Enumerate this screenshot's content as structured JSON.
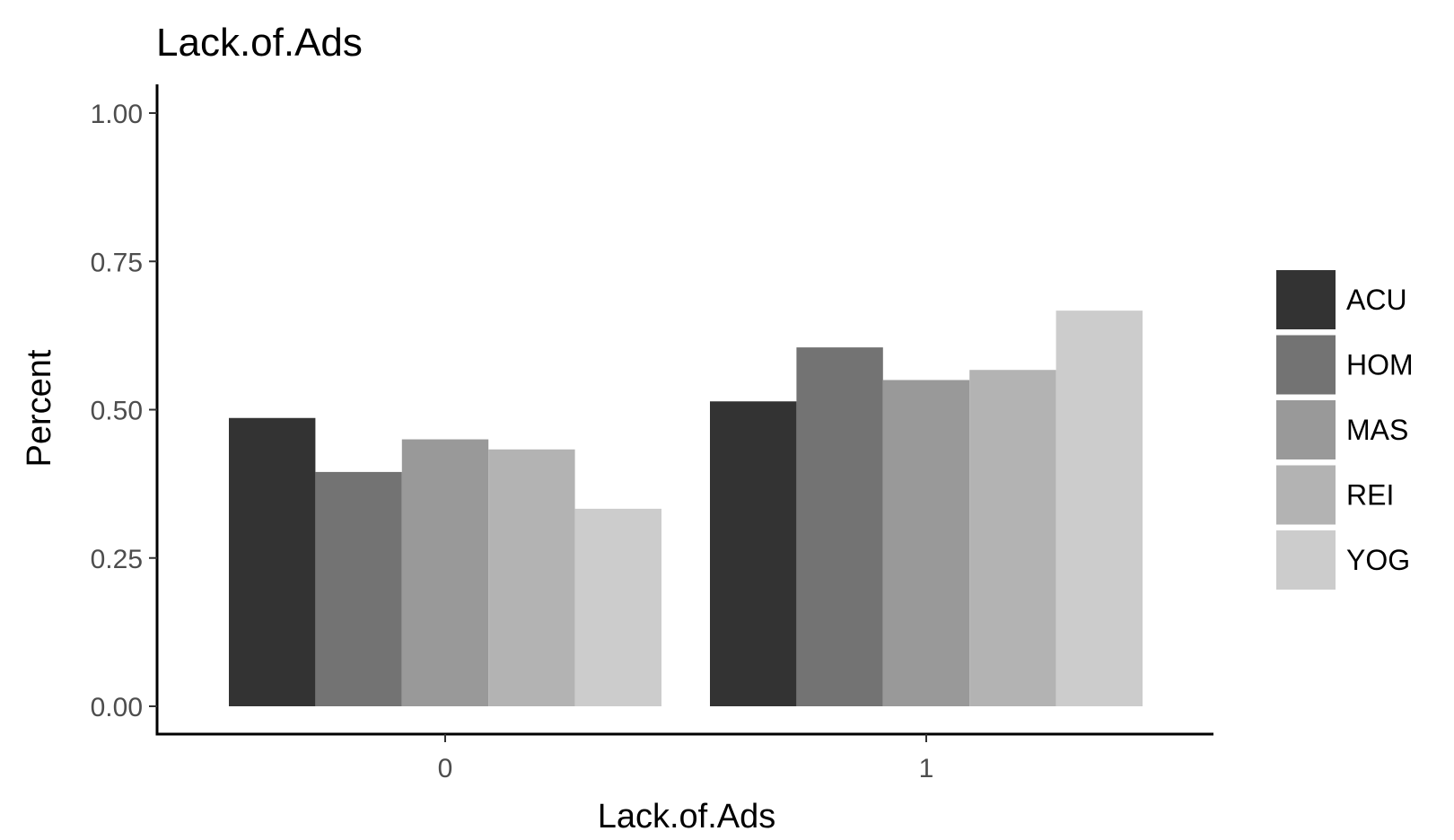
{
  "chart_data": {
    "type": "bar",
    "title": "Lack.of.Ads",
    "xlabel": "Lack.of.Ads",
    "ylabel": "Percent",
    "categories": [
      "0",
      "1"
    ],
    "series": [
      {
        "name": "ACU",
        "color": "#333333",
        "values": [
          0.486,
          0.514
        ]
      },
      {
        "name": "HOM",
        "color": "#737373",
        "values": [
          0.395,
          0.605
        ]
      },
      {
        "name": "MAS",
        "color": "#999999",
        "values": [
          0.45,
          0.55
        ]
      },
      {
        "name": "REI",
        "color": "#b3b3b3",
        "values": [
          0.433,
          0.567
        ]
      },
      {
        "name": "YOG",
        "color": "#cccccc",
        "values": [
          0.333,
          0.667
        ]
      }
    ],
    "ylim": [
      0,
      1.05
    ],
    "yticks": [
      0,
      0.25,
      0.5,
      0.75,
      1.0
    ],
    "ytick_labels": [
      "0.00",
      "0.25",
      "0.50",
      "0.75",
      "1.00"
    ],
    "grid": false,
    "legend_position": "right"
  }
}
